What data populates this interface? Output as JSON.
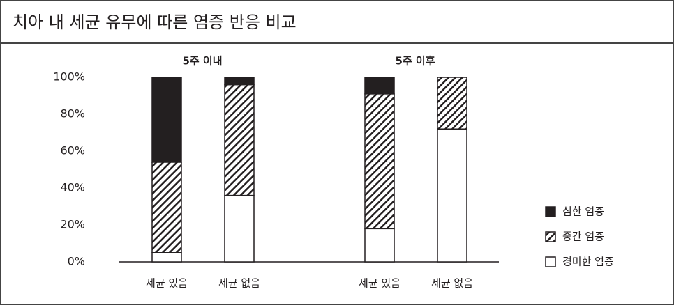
{
  "chart_data": {
    "type": "bar",
    "stacked": true,
    "title": "치아 내 세균 유무에 따른 염증 반응 비교",
    "groups": [
      {
        "name": "5주 이내",
        "categories": [
          "세균 있음",
          "세균 없음"
        ]
      },
      {
        "name": "5주 이후",
        "categories": [
          "세균 있음",
          "세균 없음"
        ]
      }
    ],
    "series": [
      {
        "name": "심한 염증",
        "color": "#231f20",
        "pattern": "solid",
        "values": [
          46,
          4,
          9,
          0
        ]
      },
      {
        "name": "중간 염증",
        "color": "#231f20",
        "pattern": "hatch",
        "values": [
          49,
          60,
          73,
          28
        ]
      },
      {
        "name": "경미한 염증",
        "color": "#231f20",
        "pattern": "outline",
        "values": [
          5,
          36,
          18,
          72
        ]
      }
    ],
    "ylim": [
      0,
      100
    ],
    "yticks": [
      {
        "value": 0,
        "label": "0%"
      },
      {
        "value": 20,
        "label": "20%"
      },
      {
        "value": 40,
        "label": "40%"
      },
      {
        "value": 60,
        "label": "60%"
      },
      {
        "value": 80,
        "label": "80%"
      },
      {
        "value": 100,
        "label": "100%"
      }
    ],
    "legend": "right"
  }
}
